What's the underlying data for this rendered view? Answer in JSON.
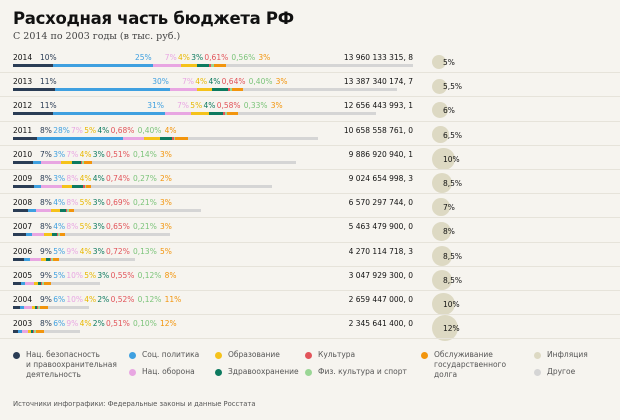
{
  "header": {
    "title": "Расходная часть бюджета РФ",
    "subtitle": "С 2014 по 2003 годы (в тыс. руб.)"
  },
  "chart_data": {
    "type": "bar",
    "orientation": "horizontal-stacked",
    "title": "Расходная часть бюджета РФ",
    "subtitle": "С 2014 по 2003 годы (в тыс. руб.)",
    "units": "тыс. руб.",
    "categories_key": "years",
    "series_names": [
      "Нац. безопасность и правоохранительная деятельность",
      "Соц. политика",
      "Нац. оборона",
      "Образование",
      "Здравоохранение",
      "Культура",
      "Физ. культура и спорт",
      "Обслуживание государственного долга",
      "Другое"
    ],
    "series_colors": [
      "#2b3d55",
      "#3fa0e0",
      "#e8a6e2",
      "#f5c21a",
      "#0d7a5f",
      "#e2545a",
      "#9ad695",
      "#f2950d",
      "#d5d5d5"
    ],
    "rows": [
      {
        "year": "2014",
        "total": "13 960 133 315, 8",
        "total_value": 13960133315.8,
        "inflation": "5%",
        "inflation_value": 5,
        "shares": {
          "security": "10%",
          "social": "25%",
          "defense": "7%",
          "education": "4%",
          "health": "3%",
          "culture": "0,61%",
          "sport": "0,56%",
          "debt": "3%"
        },
        "values": [
          10,
          25,
          7,
          4,
          3,
          0.61,
          0.56,
          3
        ]
      },
      {
        "year": "2013",
        "total": "13 387 340 174, 7",
        "total_value": 13387340174.7,
        "inflation": "5,5%",
        "inflation_value": 5.5,
        "shares": {
          "security": "11%",
          "social": "30%",
          "defense": "7%",
          "education": "4%",
          "health": "4%",
          "culture": "0,64%",
          "sport": "0,40%",
          "debt": "3%"
        },
        "values": [
          11,
          30,
          7,
          4,
          4,
          0.64,
          0.4,
          3
        ]
      },
      {
        "year": "2012",
        "total": "12 656 443 993, 1",
        "total_value": 12656443993.1,
        "inflation": "6%",
        "inflation_value": 6,
        "shares": {
          "security": "11%",
          "social": "31%",
          "defense": "7%",
          "education": "5%",
          "health": "4%",
          "culture": "0,58%",
          "sport": "0,33%",
          "debt": "3%"
        },
        "values": [
          11,
          31,
          7,
          5,
          4,
          0.58,
          0.33,
          3
        ]
      },
      {
        "year": "2011",
        "total": "10 658 558 761, 0",
        "total_value": 10658558761.0,
        "inflation": "6,5%",
        "inflation_value": 6.5,
        "shares": {
          "security": "8%",
          "social": "28%",
          "defense": "7%",
          "education": "5%",
          "health": "4%",
          "culture": "0,68%",
          "sport": "0,40%",
          "debt": "4%"
        },
        "values": [
          8,
          28,
          7,
          5,
          4,
          0.68,
          0.4,
          4
        ]
      },
      {
        "year": "2010",
        "total": "9 886 920 940, 1",
        "total_value": 9886920940.1,
        "inflation": "10%",
        "inflation_value": 10,
        "shares": {
          "security": "7%",
          "social": "3%",
          "defense": "7%",
          "education": "4%",
          "health": "3%",
          "culture": "0,51%",
          "sport": "0,14%",
          "debt": "3%"
        },
        "values": [
          7,
          3,
          7,
          4,
          3,
          0.51,
          0.14,
          3
        ]
      },
      {
        "year": "2009",
        "total": "9 024 654 998, 3",
        "total_value": 9024654998.3,
        "inflation": "8,5%",
        "inflation_value": 8.5,
        "shares": {
          "security": "8%",
          "social": "3%",
          "defense": "8%",
          "education": "4%",
          "health": "4%",
          "culture": "0,74%",
          "sport": "0,27%",
          "debt": "2%"
        },
        "values": [
          8,
          3,
          8,
          4,
          4,
          0.74,
          0.27,
          2
        ]
      },
      {
        "year": "2008",
        "total": "6 570 297 744, 0",
        "total_value": 6570297744.0,
        "inflation": "7%",
        "inflation_value": 7,
        "shares": {
          "security": "8%",
          "social": "4%",
          "defense": "8%",
          "education": "5%",
          "health": "3%",
          "culture": "0,69%",
          "sport": "0,21%",
          "debt": "3%"
        },
        "values": [
          8,
          4,
          8,
          5,
          3,
          0.69,
          0.21,
          3
        ]
      },
      {
        "year": "2007",
        "total": "5 463 479 900, 0",
        "total_value": 5463479900.0,
        "inflation": "8%",
        "inflation_value": 8,
        "shares": {
          "security": "8%",
          "social": "4%",
          "defense": "8%",
          "education": "5%",
          "health": "3%",
          "culture": "0,65%",
          "sport": "0,21%",
          "debt": "3%"
        },
        "values": [
          8,
          4,
          8,
          5,
          3,
          0.65,
          0.21,
          3
        ]
      },
      {
        "year": "2006",
        "total": "4 270 114 718, 3",
        "total_value": 4270114718.3,
        "inflation": "8,5%",
        "inflation_value": 8.5,
        "shares": {
          "security": "9%",
          "social": "5%",
          "defense": "9%",
          "education": "4%",
          "health": "3%",
          "culture": "0,72%",
          "sport": "0,13%",
          "debt": "5%"
        },
        "values": [
          9,
          5,
          9,
          4,
          3,
          0.72,
          0.13,
          5
        ]
      },
      {
        "year": "2005",
        "total": "3 047 929 300, 0",
        "total_value": 3047929300.0,
        "inflation": "8,5%",
        "inflation_value": 8.5,
        "shares": {
          "security": "9%",
          "social": "5%",
          "defense": "10%",
          "education": "5%",
          "health": "3%",
          "culture": "0,55%",
          "sport": "0,12%",
          "debt": "8%"
        },
        "values": [
          9,
          5,
          10,
          5,
          3,
          0.55,
          0.12,
          8
        ]
      },
      {
        "year": "2004",
        "total": "2 659 447 000, 0",
        "total_value": 2659447000.0,
        "inflation": "10%",
        "inflation_value": 10,
        "shares": {
          "security": "9%",
          "social": "6%",
          "defense": "10%",
          "education": "4%",
          "health": "2%",
          "culture": "0,52%",
          "sport": "0,12%",
          "debt": "11%"
        },
        "values": [
          9,
          6,
          10,
          4,
          2,
          0.52,
          0.12,
          11
        ]
      },
      {
        "year": "2003",
        "total": "2 345 641 400, 0",
        "total_value": 2345641400.0,
        "inflation": "12%",
        "inflation_value": 12,
        "shares": {
          "security": "8%",
          "social": "6%",
          "defense": "9%",
          "education": "4%",
          "health": "2%",
          "culture": "0,51%",
          "sport": "0,10%",
          "debt": "12%"
        },
        "values": [
          8,
          6,
          9,
          4,
          2,
          0.51,
          0.1,
          12
        ]
      }
    ],
    "legend_position": "bottom"
  },
  "legend": [
    {
      "key": "security",
      "label_lines": [
        "Нац. безопасность",
        "и правоохранительная",
        "деятельность"
      ],
      "color": "#2b3d55"
    },
    {
      "key": "social",
      "label_lines": [
        "Соц. политика"
      ],
      "color": "#3fa0e0"
    },
    {
      "key": "defense",
      "label_lines": [
        "Нац. оборона"
      ],
      "color": "#e8a6e2"
    },
    {
      "key": "education",
      "label_lines": [
        "Образование"
      ],
      "color": "#f5c21a"
    },
    {
      "key": "health",
      "label_lines": [
        "Здравоохранение"
      ],
      "color": "#0d7a5f"
    },
    {
      "key": "culture",
      "label_lines": [
        "Культура"
      ],
      "color": "#e2545a"
    },
    {
      "key": "sport",
      "label_lines": [
        "Физ. культура и спорт"
      ],
      "color": "#9ad695"
    },
    {
      "key": "debt",
      "label_lines": [
        "Обслуживание",
        "государственного",
        "долга"
      ],
      "color": "#f2950d"
    },
    {
      "key": "inflation",
      "label_lines": [
        "Инфляция"
      ],
      "color": "#ddd9c3"
    },
    {
      "key": "other",
      "label_lines": [
        "Другое"
      ],
      "color": "#d5d5d5"
    }
  ],
  "footer": {
    "source": "Источники инфографики: Федеральные законы и данные Росстата"
  }
}
